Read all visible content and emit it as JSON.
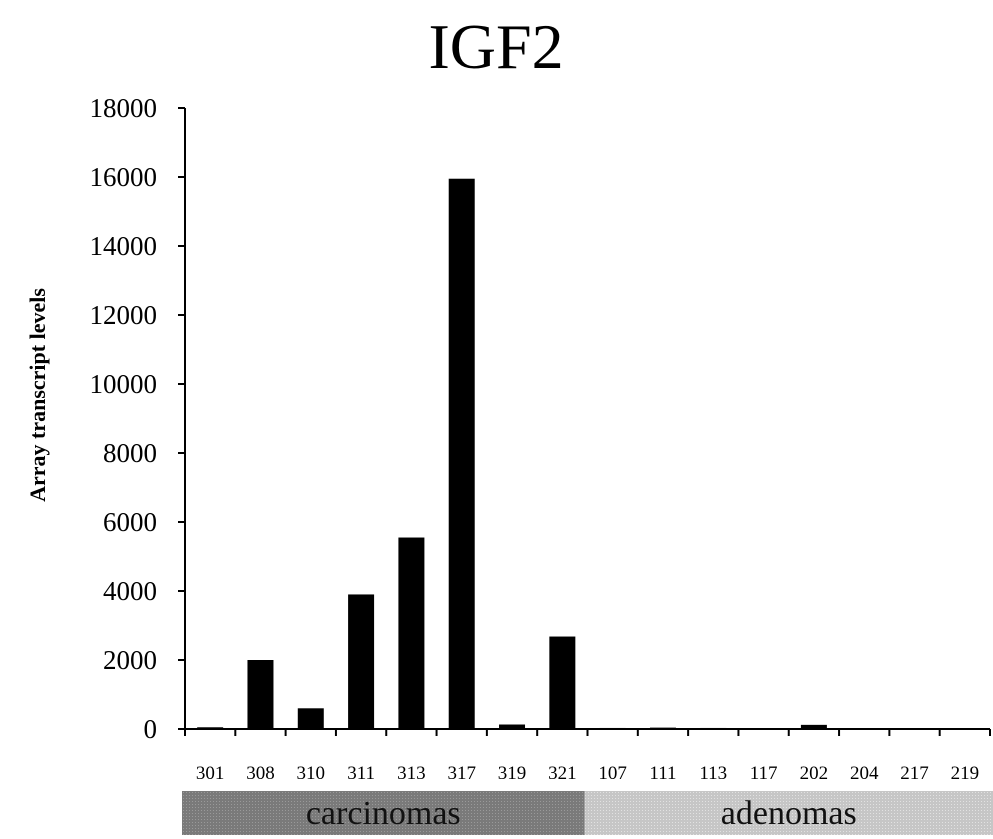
{
  "chart_data": {
    "type": "bar",
    "title": "IGF2",
    "ylabel": "Array transcript levels",
    "xlabel": "",
    "ylim": [
      0,
      18000
    ],
    "yticks": [
      0,
      2000,
      4000,
      6000,
      8000,
      10000,
      12000,
      14000,
      16000,
      18000
    ],
    "categories": [
      "301",
      "308",
      "310",
      "311",
      "313",
      "317",
      "319",
      "321",
      "107",
      "111",
      "113",
      "117",
      "202",
      "204",
      "217",
      "219"
    ],
    "values": [
      50,
      2000,
      600,
      3900,
      5550,
      15950,
      130,
      2680,
      30,
      40,
      30,
      20,
      120,
      20,
      20,
      20
    ],
    "bar_color": "#000000",
    "grid": false,
    "groups": [
      {
        "label": "carcinomas",
        "start": 0,
        "end": 7,
        "color": "#7a7a7a"
      },
      {
        "label": "adenomas",
        "start": 8,
        "end": 15,
        "color": "#c4c4c4"
      }
    ]
  }
}
